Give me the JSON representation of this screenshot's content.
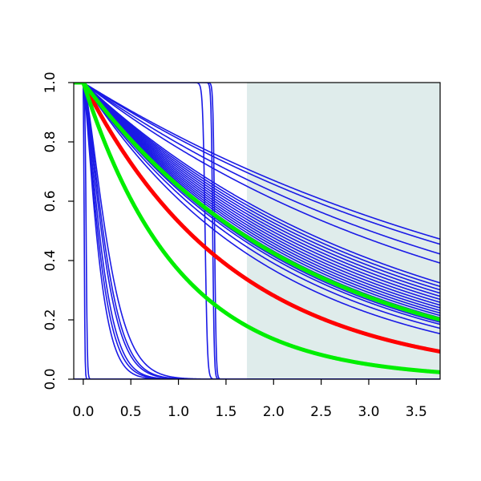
{
  "chart_data": {
    "type": "line",
    "title": "",
    "xlabel": "",
    "ylabel": "",
    "xlim": [
      -0.1,
      3.75
    ],
    "ylim": [
      0.0,
      1.0
    ],
    "xticks": [
      "0.0",
      "0.5",
      "1.0",
      "1.5",
      "2.0",
      "2.5",
      "3.0",
      "3.5"
    ],
    "yticks": [
      "0.0",
      "0.2",
      "0.4",
      "0.6",
      "0.8",
      "1.0"
    ],
    "grid": false,
    "legend": "none",
    "shaded_region": {
      "x_from": 1.72,
      "x_to": 3.75,
      "color": "#dfeceb"
    },
    "colors": {
      "blue": "#1a1ae6",
      "red": "#ff0000",
      "green": "#00ee00"
    },
    "series": [
      {
        "group": "blue",
        "kind": "exp",
        "rate": 0.2
      },
      {
        "group": "blue",
        "kind": "exp",
        "rate": 0.21
      },
      {
        "group": "blue",
        "kind": "exp",
        "rate": 0.23
      },
      {
        "group": "blue",
        "kind": "exp",
        "rate": 0.25
      },
      {
        "group": "blue",
        "kind": "exp",
        "rate": 0.3
      },
      {
        "group": "blue",
        "kind": "exp",
        "rate": 0.31
      },
      {
        "group": "blue",
        "kind": "exp",
        "rate": 0.32
      },
      {
        "group": "blue",
        "kind": "exp",
        "rate": 0.33
      },
      {
        "group": "blue",
        "kind": "exp",
        "rate": 0.34
      },
      {
        "group": "blue",
        "kind": "exp",
        "rate": 0.35
      },
      {
        "group": "blue",
        "kind": "exp",
        "rate": 0.36
      },
      {
        "group": "blue",
        "kind": "exp",
        "rate": 0.37
      },
      {
        "group": "blue",
        "kind": "exp",
        "rate": 0.38
      },
      {
        "group": "blue",
        "kind": "exp",
        "rate": 0.39
      },
      {
        "group": "blue",
        "kind": "exp",
        "rate": 0.4
      },
      {
        "group": "blue",
        "kind": "exp",
        "rate": 0.41
      },
      {
        "group": "blue",
        "kind": "exp",
        "rate": 0.42
      },
      {
        "group": "blue",
        "kind": "exp",
        "rate": 0.43
      },
      {
        "group": "blue",
        "kind": "exp",
        "rate": 0.44
      },
      {
        "group": "blue",
        "kind": "exp",
        "rate": 0.45
      },
      {
        "group": "blue",
        "kind": "exp",
        "rate": 0.47
      },
      {
        "group": "blue",
        "kind": "exp",
        "rate": 0.5
      },
      {
        "group": "blue",
        "kind": "weibull",
        "scale": 0.18,
        "shape": 1.3
      },
      {
        "group": "blue",
        "kind": "weibull",
        "scale": 0.2,
        "shape": 1.3
      },
      {
        "group": "blue",
        "kind": "weibull",
        "scale": 0.22,
        "shape": 1.35
      },
      {
        "group": "blue",
        "kind": "weibull",
        "scale": 0.25,
        "shape": 1.35
      },
      {
        "group": "blue",
        "kind": "weibull",
        "scale": 0.27,
        "shape": 1.4
      },
      {
        "group": "blue",
        "kind": "weibull",
        "scale": 0.3,
        "shape": 1.4
      },
      {
        "group": "blue",
        "kind": "step",
        "center": 1.28,
        "width": 0.012
      },
      {
        "group": "blue",
        "kind": "step",
        "center": 1.36,
        "width": 0.008
      },
      {
        "group": "blue",
        "kind": "step",
        "center": 1.38,
        "width": 0.008
      },
      {
        "group": "blue",
        "kind": "step",
        "center": 0.01,
        "width": 0.004
      },
      {
        "group": "blue",
        "kind": "step",
        "center": 0.03,
        "width": 0.006
      },
      {
        "group": "green",
        "kind": "exp",
        "rate": 0.428
      },
      {
        "group": "green",
        "kind": "exp",
        "rate": 1.0
      },
      {
        "group": "red",
        "kind": "exp",
        "rate": 0.633
      }
    ]
  }
}
